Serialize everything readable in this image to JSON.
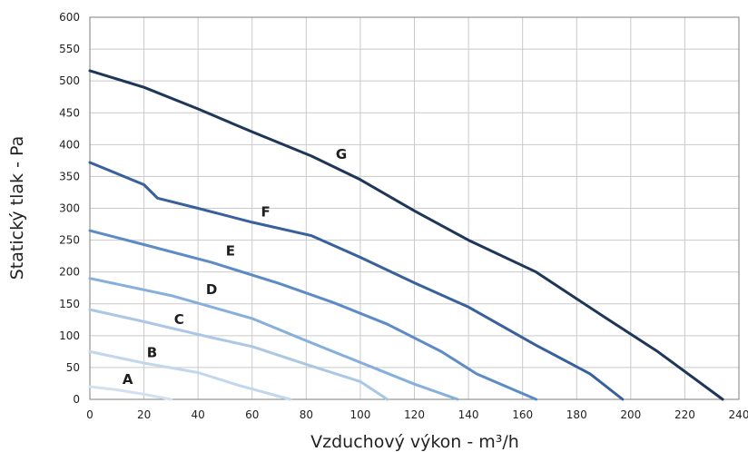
{
  "chart_data": {
    "type": "line",
    "xlabel": "Vzduchový výkon - m³/h",
    "ylabel": "Statický tlak - Pa",
    "xlim": [
      0,
      240
    ],
    "ylim": [
      0,
      600
    ],
    "xticks": [
      0,
      20,
      40,
      60,
      80,
      100,
      120,
      140,
      160,
      180,
      200,
      220,
      240
    ],
    "yticks": [
      0,
      50,
      100,
      150,
      200,
      250,
      300,
      350,
      400,
      450,
      500,
      550,
      600
    ],
    "grid": true,
    "series": [
      {
        "name": "A",
        "color": "#d2e0ef",
        "label_pos": [
          14,
          24
        ],
        "points": [
          [
            0,
            20
          ],
          [
            10,
            15
          ],
          [
            20,
            8
          ],
          [
            30,
            0
          ]
        ]
      },
      {
        "name": "B",
        "color": "#c2d6ec",
        "label_pos": [
          23,
          66
        ],
        "points": [
          [
            0,
            75
          ],
          [
            20,
            57
          ],
          [
            40,
            42
          ],
          [
            55,
            22
          ],
          [
            74,
            0
          ]
        ]
      },
      {
        "name": "C",
        "color": "#aac7e6",
        "label_pos": [
          33,
          118
        ],
        "points": [
          [
            0,
            141
          ],
          [
            20,
            122
          ],
          [
            45,
            97
          ],
          [
            60,
            83
          ],
          [
            80,
            55
          ],
          [
            100,
            28
          ],
          [
            110,
            0
          ]
        ]
      },
      {
        "name": "D",
        "color": "#86afdc",
        "label_pos": [
          45,
          165
        ],
        "points": [
          [
            0,
            190
          ],
          [
            30,
            163
          ],
          [
            60,
            127
          ],
          [
            80,
            92
          ],
          [
            100,
            58
          ],
          [
            120,
            24
          ],
          [
            136,
            0
          ]
        ]
      },
      {
        "name": "E",
        "color": "#5c8bc5",
        "label_pos": [
          52,
          226
        ],
        "points": [
          [
            0,
            265
          ],
          [
            20,
            243
          ],
          [
            45,
            215
          ],
          [
            70,
            182
          ],
          [
            90,
            152
          ],
          [
            110,
            118
          ],
          [
            130,
            75
          ],
          [
            143,
            40
          ],
          [
            165,
            0
          ]
        ]
      },
      {
        "name": "F",
        "color": "#38609c",
        "label_pos": [
          65,
          287
        ],
        "points": [
          [
            0,
            372
          ],
          [
            20,
            337
          ],
          [
            25,
            316
          ],
          [
            40,
            300
          ],
          [
            60,
            278
          ],
          [
            82,
            257
          ],
          [
            100,
            223
          ],
          [
            120,
            183
          ],
          [
            140,
            145
          ],
          [
            165,
            85
          ],
          [
            185,
            40
          ],
          [
            197,
            0
          ]
        ]
      },
      {
        "name": "G",
        "color": "#1e3658",
        "label_pos": [
          93,
          378
        ],
        "points": [
          [
            0,
            516
          ],
          [
            20,
            490
          ],
          [
            40,
            456
          ],
          [
            60,
            420
          ],
          [
            82,
            382
          ],
          [
            100,
            345
          ],
          [
            120,
            296
          ],
          [
            140,
            250
          ],
          [
            165,
            200
          ],
          [
            190,
            130
          ],
          [
            210,
            75
          ],
          [
            234,
            0
          ]
        ]
      }
    ]
  }
}
